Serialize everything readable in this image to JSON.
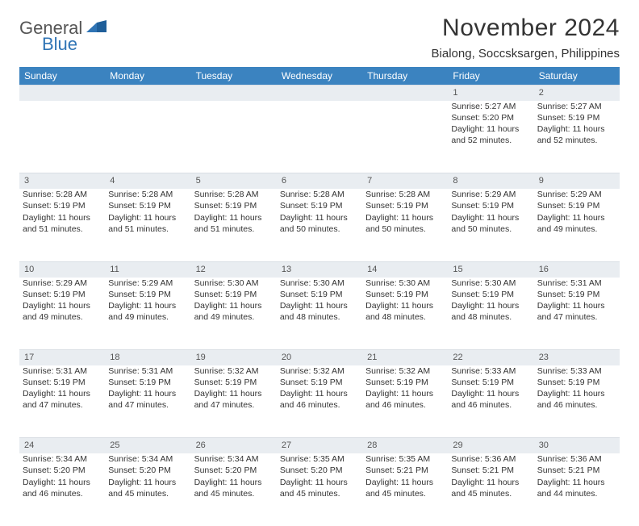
{
  "brand": {
    "word1": "General",
    "word2": "Blue",
    "accent": "#2f74b5",
    "text_color": "#555555"
  },
  "title": "November 2024",
  "location": "Bialong, Soccsksargen, Philippines",
  "colors": {
    "header_bg": "#3b83c0",
    "header_text": "#ffffff",
    "daynum_bg": "#e9edf1",
    "body_text": "#333333",
    "page_bg": "#ffffff"
  },
  "font": {
    "family": "Arial",
    "title_size": 30,
    "location_size": 15,
    "dayhead_size": 12,
    "cell_size": 10.5
  },
  "day_headers": [
    "Sunday",
    "Monday",
    "Tuesday",
    "Wednesday",
    "Thursday",
    "Friday",
    "Saturday"
  ],
  "weeks": [
    {
      "nums": [
        "",
        "",
        "",
        "",
        "",
        "1",
        "2"
      ],
      "cells": [
        null,
        null,
        null,
        null,
        null,
        {
          "sunrise": "Sunrise: 5:27 AM",
          "sunset": "Sunset: 5:20 PM",
          "day1": "Daylight: 11 hours",
          "day2": "and 52 minutes."
        },
        {
          "sunrise": "Sunrise: 5:27 AM",
          "sunset": "Sunset: 5:19 PM",
          "day1": "Daylight: 11 hours",
          "day2": "and 52 minutes."
        }
      ]
    },
    {
      "nums": [
        "3",
        "4",
        "5",
        "6",
        "7",
        "8",
        "9"
      ],
      "cells": [
        {
          "sunrise": "Sunrise: 5:28 AM",
          "sunset": "Sunset: 5:19 PM",
          "day1": "Daylight: 11 hours",
          "day2": "and 51 minutes."
        },
        {
          "sunrise": "Sunrise: 5:28 AM",
          "sunset": "Sunset: 5:19 PM",
          "day1": "Daylight: 11 hours",
          "day2": "and 51 minutes."
        },
        {
          "sunrise": "Sunrise: 5:28 AM",
          "sunset": "Sunset: 5:19 PM",
          "day1": "Daylight: 11 hours",
          "day2": "and 51 minutes."
        },
        {
          "sunrise": "Sunrise: 5:28 AM",
          "sunset": "Sunset: 5:19 PM",
          "day1": "Daylight: 11 hours",
          "day2": "and 50 minutes."
        },
        {
          "sunrise": "Sunrise: 5:28 AM",
          "sunset": "Sunset: 5:19 PM",
          "day1": "Daylight: 11 hours",
          "day2": "and 50 minutes."
        },
        {
          "sunrise": "Sunrise: 5:29 AM",
          "sunset": "Sunset: 5:19 PM",
          "day1": "Daylight: 11 hours",
          "day2": "and 50 minutes."
        },
        {
          "sunrise": "Sunrise: 5:29 AM",
          "sunset": "Sunset: 5:19 PM",
          "day1": "Daylight: 11 hours",
          "day2": "and 49 minutes."
        }
      ]
    },
    {
      "nums": [
        "10",
        "11",
        "12",
        "13",
        "14",
        "15",
        "16"
      ],
      "cells": [
        {
          "sunrise": "Sunrise: 5:29 AM",
          "sunset": "Sunset: 5:19 PM",
          "day1": "Daylight: 11 hours",
          "day2": "and 49 minutes."
        },
        {
          "sunrise": "Sunrise: 5:29 AM",
          "sunset": "Sunset: 5:19 PM",
          "day1": "Daylight: 11 hours",
          "day2": "and 49 minutes."
        },
        {
          "sunrise": "Sunrise: 5:30 AM",
          "sunset": "Sunset: 5:19 PM",
          "day1": "Daylight: 11 hours",
          "day2": "and 49 minutes."
        },
        {
          "sunrise": "Sunrise: 5:30 AM",
          "sunset": "Sunset: 5:19 PM",
          "day1": "Daylight: 11 hours",
          "day2": "and 48 minutes."
        },
        {
          "sunrise": "Sunrise: 5:30 AM",
          "sunset": "Sunset: 5:19 PM",
          "day1": "Daylight: 11 hours",
          "day2": "and 48 minutes."
        },
        {
          "sunrise": "Sunrise: 5:30 AM",
          "sunset": "Sunset: 5:19 PM",
          "day1": "Daylight: 11 hours",
          "day2": "and 48 minutes."
        },
        {
          "sunrise": "Sunrise: 5:31 AM",
          "sunset": "Sunset: 5:19 PM",
          "day1": "Daylight: 11 hours",
          "day2": "and 47 minutes."
        }
      ]
    },
    {
      "nums": [
        "17",
        "18",
        "19",
        "20",
        "21",
        "22",
        "23"
      ],
      "cells": [
        {
          "sunrise": "Sunrise: 5:31 AM",
          "sunset": "Sunset: 5:19 PM",
          "day1": "Daylight: 11 hours",
          "day2": "and 47 minutes."
        },
        {
          "sunrise": "Sunrise: 5:31 AM",
          "sunset": "Sunset: 5:19 PM",
          "day1": "Daylight: 11 hours",
          "day2": "and 47 minutes."
        },
        {
          "sunrise": "Sunrise: 5:32 AM",
          "sunset": "Sunset: 5:19 PM",
          "day1": "Daylight: 11 hours",
          "day2": "and 47 minutes."
        },
        {
          "sunrise": "Sunrise: 5:32 AM",
          "sunset": "Sunset: 5:19 PM",
          "day1": "Daylight: 11 hours",
          "day2": "and 46 minutes."
        },
        {
          "sunrise": "Sunrise: 5:32 AM",
          "sunset": "Sunset: 5:19 PM",
          "day1": "Daylight: 11 hours",
          "day2": "and 46 minutes."
        },
        {
          "sunrise": "Sunrise: 5:33 AM",
          "sunset": "Sunset: 5:19 PM",
          "day1": "Daylight: 11 hours",
          "day2": "and 46 minutes."
        },
        {
          "sunrise": "Sunrise: 5:33 AM",
          "sunset": "Sunset: 5:19 PM",
          "day1": "Daylight: 11 hours",
          "day2": "and 46 minutes."
        }
      ]
    },
    {
      "nums": [
        "24",
        "25",
        "26",
        "27",
        "28",
        "29",
        "30"
      ],
      "cells": [
        {
          "sunrise": "Sunrise: 5:34 AM",
          "sunset": "Sunset: 5:20 PM",
          "day1": "Daylight: 11 hours",
          "day2": "and 46 minutes."
        },
        {
          "sunrise": "Sunrise: 5:34 AM",
          "sunset": "Sunset: 5:20 PM",
          "day1": "Daylight: 11 hours",
          "day2": "and 45 minutes."
        },
        {
          "sunrise": "Sunrise: 5:34 AM",
          "sunset": "Sunset: 5:20 PM",
          "day1": "Daylight: 11 hours",
          "day2": "and 45 minutes."
        },
        {
          "sunrise": "Sunrise: 5:35 AM",
          "sunset": "Sunset: 5:20 PM",
          "day1": "Daylight: 11 hours",
          "day2": "and 45 minutes."
        },
        {
          "sunrise": "Sunrise: 5:35 AM",
          "sunset": "Sunset: 5:21 PM",
          "day1": "Daylight: 11 hours",
          "day2": "and 45 minutes."
        },
        {
          "sunrise": "Sunrise: 5:36 AM",
          "sunset": "Sunset: 5:21 PM",
          "day1": "Daylight: 11 hours",
          "day2": "and 45 minutes."
        },
        {
          "sunrise": "Sunrise: 5:36 AM",
          "sunset": "Sunset: 5:21 PM",
          "day1": "Daylight: 11 hours",
          "day2": "and 44 minutes."
        }
      ]
    }
  ]
}
